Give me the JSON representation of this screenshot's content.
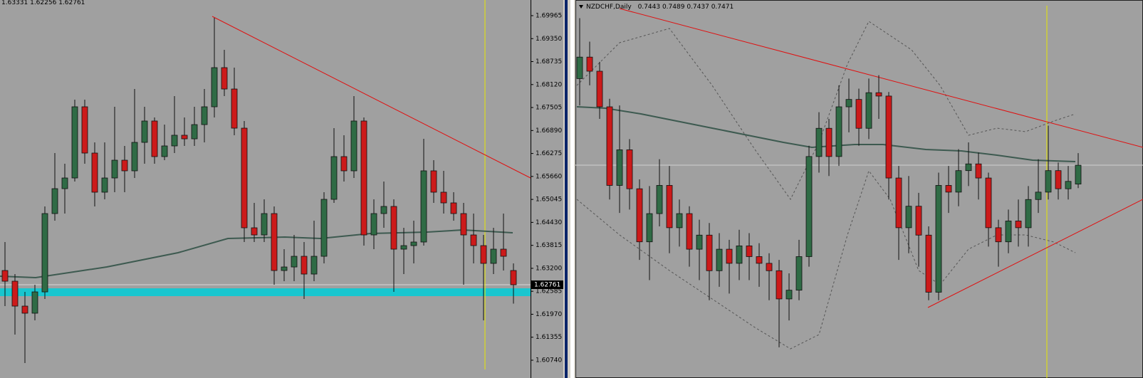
{
  "chart_data": [
    {
      "type": "candlestick",
      "up_color": "#2f6b45",
      "down_color": "#cc1a1a",
      "ylim": [
        1.60492,
        1.70384
      ],
      "yticks": [
        1.69965,
        {
          "value": 1.6935,
          "label": "1.69350"
        },
        1.68735,
        {
          "value": 1.6812,
          "label": "1.68120"
        },
        1.67505,
        {
          "value": 1.6689,
          "label": "1.66890"
        },
        1.66275,
        {
          "value": 1.6566,
          "label": "1.65660"
        },
        1.65045,
        {
          "value": 1.6443,
          "label": "1.64430"
        },
        1.63815,
        {
          "value": 1.632,
          "label": "1.63200"
        },
        1.62585,
        {
          "value": 1.6197,
          "label": "1.61970"
        },
        1.61355,
        {
          "value": 1.6074,
          "label": "1.60740"
        }
      ],
      "open": [
        1.63141,
        1.62855,
        1.62188,
        1.61998,
        1.62569,
        1.64666,
        1.65333,
        1.65619,
        1.67525,
        1.66286,
        1.65238,
        1.65619,
        1.66095,
        1.6581,
        1.66572,
        1.67144,
        1.66191,
        1.66477,
        1.66763,
        1.66667,
        1.67048,
        1.67525,
        1.68573,
        1.68001,
        1.66953,
        1.64285,
        1.64094,
        1.64666,
        1.63141,
        1.63236,
        1.63522,
        1.63046,
        1.63522,
        1.65047,
        1.66191,
        1.6581,
        1.67144,
        1.64094,
        1.64666,
        1.64857,
        1.63713,
        1.63808,
        1.63904,
        1.6581,
        1.65238,
        1.64952,
        1.64666,
        1.64094,
        1.63808,
        1.63332,
        1.63713,
        1.63141
      ],
      "high": [
        1.63904,
        1.63046,
        1.62569,
        1.6276,
        1.64857,
        1.66286,
        1.66,
        1.67716,
        1.67716,
        1.66572,
        1.66572,
        1.67525,
        1.66477,
        1.68001,
        1.67525,
        1.67239,
        1.67048,
        1.67811,
        1.67239,
        1.67525,
        1.68001,
        1.69907,
        1.6905,
        1.68573,
        1.67144,
        1.64952,
        1.65047,
        1.64857,
        1.63713,
        1.64094,
        1.63904,
        1.64475,
        1.65238,
        1.66953,
        1.66763,
        1.67811,
        1.67239,
        1.65047,
        1.65524,
        1.65047,
        1.64285,
        1.64475,
        1.66667,
        1.66095,
        1.6581,
        1.65238,
        1.64952,
        1.64666,
        1.64094,
        1.64285,
        1.64666,
        1.63331
      ],
      "low": [
        1.62188,
        1.61426,
        1.60663,
        1.61807,
        1.62379,
        1.64475,
        1.64666,
        1.65524,
        1.66,
        1.64857,
        1.65047,
        1.65238,
        1.65238,
        1.65619,
        1.66,
        1.66,
        1.66095,
        1.66286,
        1.66477,
        1.66477,
        1.66572,
        1.67239,
        1.67811,
        1.66763,
        1.63904,
        1.63904,
        1.63904,
        1.6276,
        1.62855,
        1.62855,
        1.62379,
        1.62855,
        1.63332,
        1.64952,
        1.65524,
        1.65619,
        1.63808,
        1.63713,
        1.64285,
        1.62569,
        1.63046,
        1.63332,
        1.63808,
        1.64952,
        1.64666,
        1.64475,
        1.6276,
        1.63332,
        1.61807,
        1.63046,
        1.63141,
        1.62256
      ],
      "close": [
        1.62855,
        1.62188,
        1.61998,
        1.62569,
        1.64666,
        1.65333,
        1.65619,
        1.67525,
        1.66286,
        1.65238,
        1.65619,
        1.66095,
        1.6581,
        1.66572,
        1.67144,
        1.66191,
        1.66477,
        1.66763,
        1.66667,
        1.67048,
        1.67525,
        1.68573,
        1.68001,
        1.66953,
        1.64285,
        1.64094,
        1.64666,
        1.63141,
        1.63236,
        1.63522,
        1.63046,
        1.63522,
        1.65047,
        1.66191,
        1.6581,
        1.67144,
        1.64094,
        1.64666,
        1.64857,
        1.63713,
        1.63808,
        1.63904,
        1.6581,
        1.65238,
        1.64952,
        1.64666,
        1.64094,
        1.63808,
        1.63332,
        1.63713,
        1.63522,
        1.62761
      ]
    },
    {
      "type": "candlestick",
      "title": "NZDCHF,Daily",
      "up_color": "#2f6b45",
      "down_color": "#cc1a1a",
      "ylim": [
        0.7167,
        0.7717
      ],
      "open": [
        0.76,
        0.7632,
        0.7611,
        0.7558,
        0.7441,
        0.7494,
        0.7436,
        0.7357,
        0.7399,
        0.7441,
        0.7378,
        0.7399,
        0.7346,
        0.7367,
        0.7314,
        0.7346,
        0.7325,
        0.7351,
        0.7335,
        0.7325,
        0.7314,
        0.7272,
        0.7285,
        0.7335,
        0.7484,
        0.7526,
        0.7484,
        0.7558,
        0.7569,
        0.7526,
        0.7579,
        0.7574,
        0.7452,
        0.7378,
        0.741,
        0.7367,
        0.7282,
        0.7441,
        0.7431,
        0.7463,
        0.7473,
        0.7452,
        0.7378,
        0.7357,
        0.7388,
        0.7378,
        0.742,
        0.7431,
        0.7463,
        0.7436,
        0.7443
      ],
      "high": [
        0.769,
        0.7655,
        0.7625,
        0.757,
        0.756,
        0.751,
        0.745,
        0.744,
        0.748,
        0.747,
        0.742,
        0.741,
        0.739,
        0.7385,
        0.737,
        0.736,
        0.7375,
        0.737,
        0.7355,
        0.734,
        0.733,
        0.731,
        0.736,
        0.75,
        0.755,
        0.754,
        0.759,
        0.76,
        0.7585,
        0.76,
        0.7605,
        0.758,
        0.747,
        0.7455,
        0.743,
        0.738,
        0.746,
        0.747,
        0.7495,
        0.7505,
        0.749,
        0.746,
        0.739,
        0.7405,
        0.742,
        0.744,
        0.748,
        0.753,
        0.7475,
        0.747,
        0.7489
      ],
      "low": [
        0.756,
        0.759,
        0.754,
        0.742,
        0.74,
        0.7405,
        0.733,
        0.73,
        0.738,
        0.734,
        0.735,
        0.732,
        0.73,
        0.727,
        0.729,
        0.728,
        0.73,
        0.73,
        0.729,
        0.727,
        0.72,
        0.724,
        0.727,
        0.732,
        0.746,
        0.7455,
        0.747,
        0.752,
        0.75,
        0.751,
        0.754,
        0.742,
        0.733,
        0.734,
        0.732,
        0.727,
        0.727,
        0.74,
        0.741,
        0.744,
        0.742,
        0.735,
        0.732,
        0.734,
        0.735,
        0.735,
        0.74,
        0.742,
        0.742,
        0.742,
        0.7437
      ],
      "close": [
        0.7632,
        0.7611,
        0.7558,
        0.7441,
        0.7494,
        0.7436,
        0.7357,
        0.7399,
        0.7441,
        0.7378,
        0.7399,
        0.7346,
        0.7367,
        0.7314,
        0.7346,
        0.7325,
        0.7351,
        0.7335,
        0.7325,
        0.7314,
        0.7272,
        0.7285,
        0.7335,
        0.7484,
        0.7526,
        0.7484,
        0.7558,
        0.7569,
        0.7526,
        0.7579,
        0.7574,
        0.7452,
        0.7378,
        0.741,
        0.7367,
        0.7282,
        0.7441,
        0.7431,
        0.7463,
        0.7473,
        0.7452,
        0.7378,
        0.7357,
        0.7388,
        0.7378,
        0.742,
        0.7431,
        0.7463,
        0.7436,
        0.7447,
        0.7471
      ]
    }
  ]
}
